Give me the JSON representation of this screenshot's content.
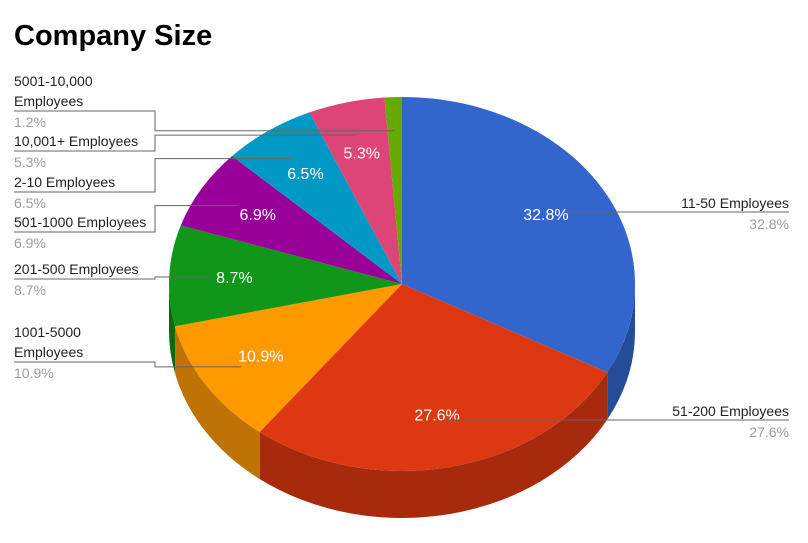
{
  "chart_data": {
    "type": "pie",
    "title": "Company Size",
    "slices": [
      {
        "label": "11-50 Employees",
        "value": 32.8,
        "pct_label": "32.8%",
        "color": "#3366cc",
        "side_color": "#254c99"
      },
      {
        "label": "51-200 Employees",
        "value": 27.6,
        "pct_label": "27.6%",
        "color": "#dc3912",
        "side_color": "#a82a0d"
      },
      {
        "label": "1001-5000 Employees",
        "value": 10.9,
        "pct_label": "10.9%",
        "color": "#ff9900",
        "side_color": "#c07305"
      },
      {
        "label": "201-500 Employees",
        "value": 8.7,
        "pct_label": "8.7%",
        "color": "#109618",
        "side_color": "#0b6a11"
      },
      {
        "label": "501-1000 Employees",
        "value": 6.9,
        "pct_label": "6.9%",
        "color": "#990099",
        "side_color": "#6b006b"
      },
      {
        "label": "2-10 Employees",
        "value": 6.5,
        "pct_label": "6.5%",
        "color": "#0099c6",
        "side_color": "#006e8e"
      },
      {
        "label": "10,001+ Employees",
        "value": 5.3,
        "pct_label": "5.3%",
        "color": "#dd4477",
        "side_color": "#a33057"
      },
      {
        "label": "5001-10,000 Employees",
        "value": 1.2,
        "pct_label": "1.2%",
        "color": "#66aa00",
        "side_color": "#4a7a00"
      }
    ],
    "is_3d": true,
    "legend": "labeled-callouts"
  }
}
